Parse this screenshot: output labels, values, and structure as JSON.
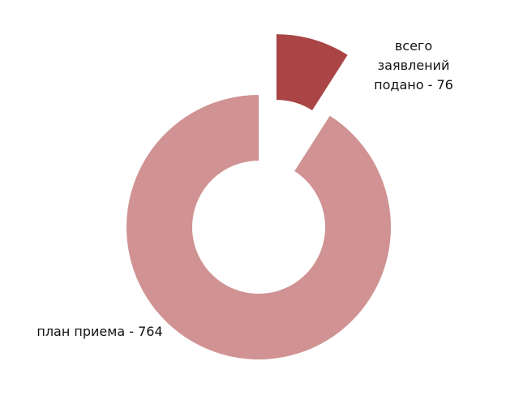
{
  "chart_data": {
    "type": "donut",
    "values": [
      76,
      764
    ],
    "value_labels": [
      "всего заявлений подано - 76",
      "план приема - 764"
    ],
    "colors": [
      "#a94545",
      "#d09292"
    ]
  }
}
